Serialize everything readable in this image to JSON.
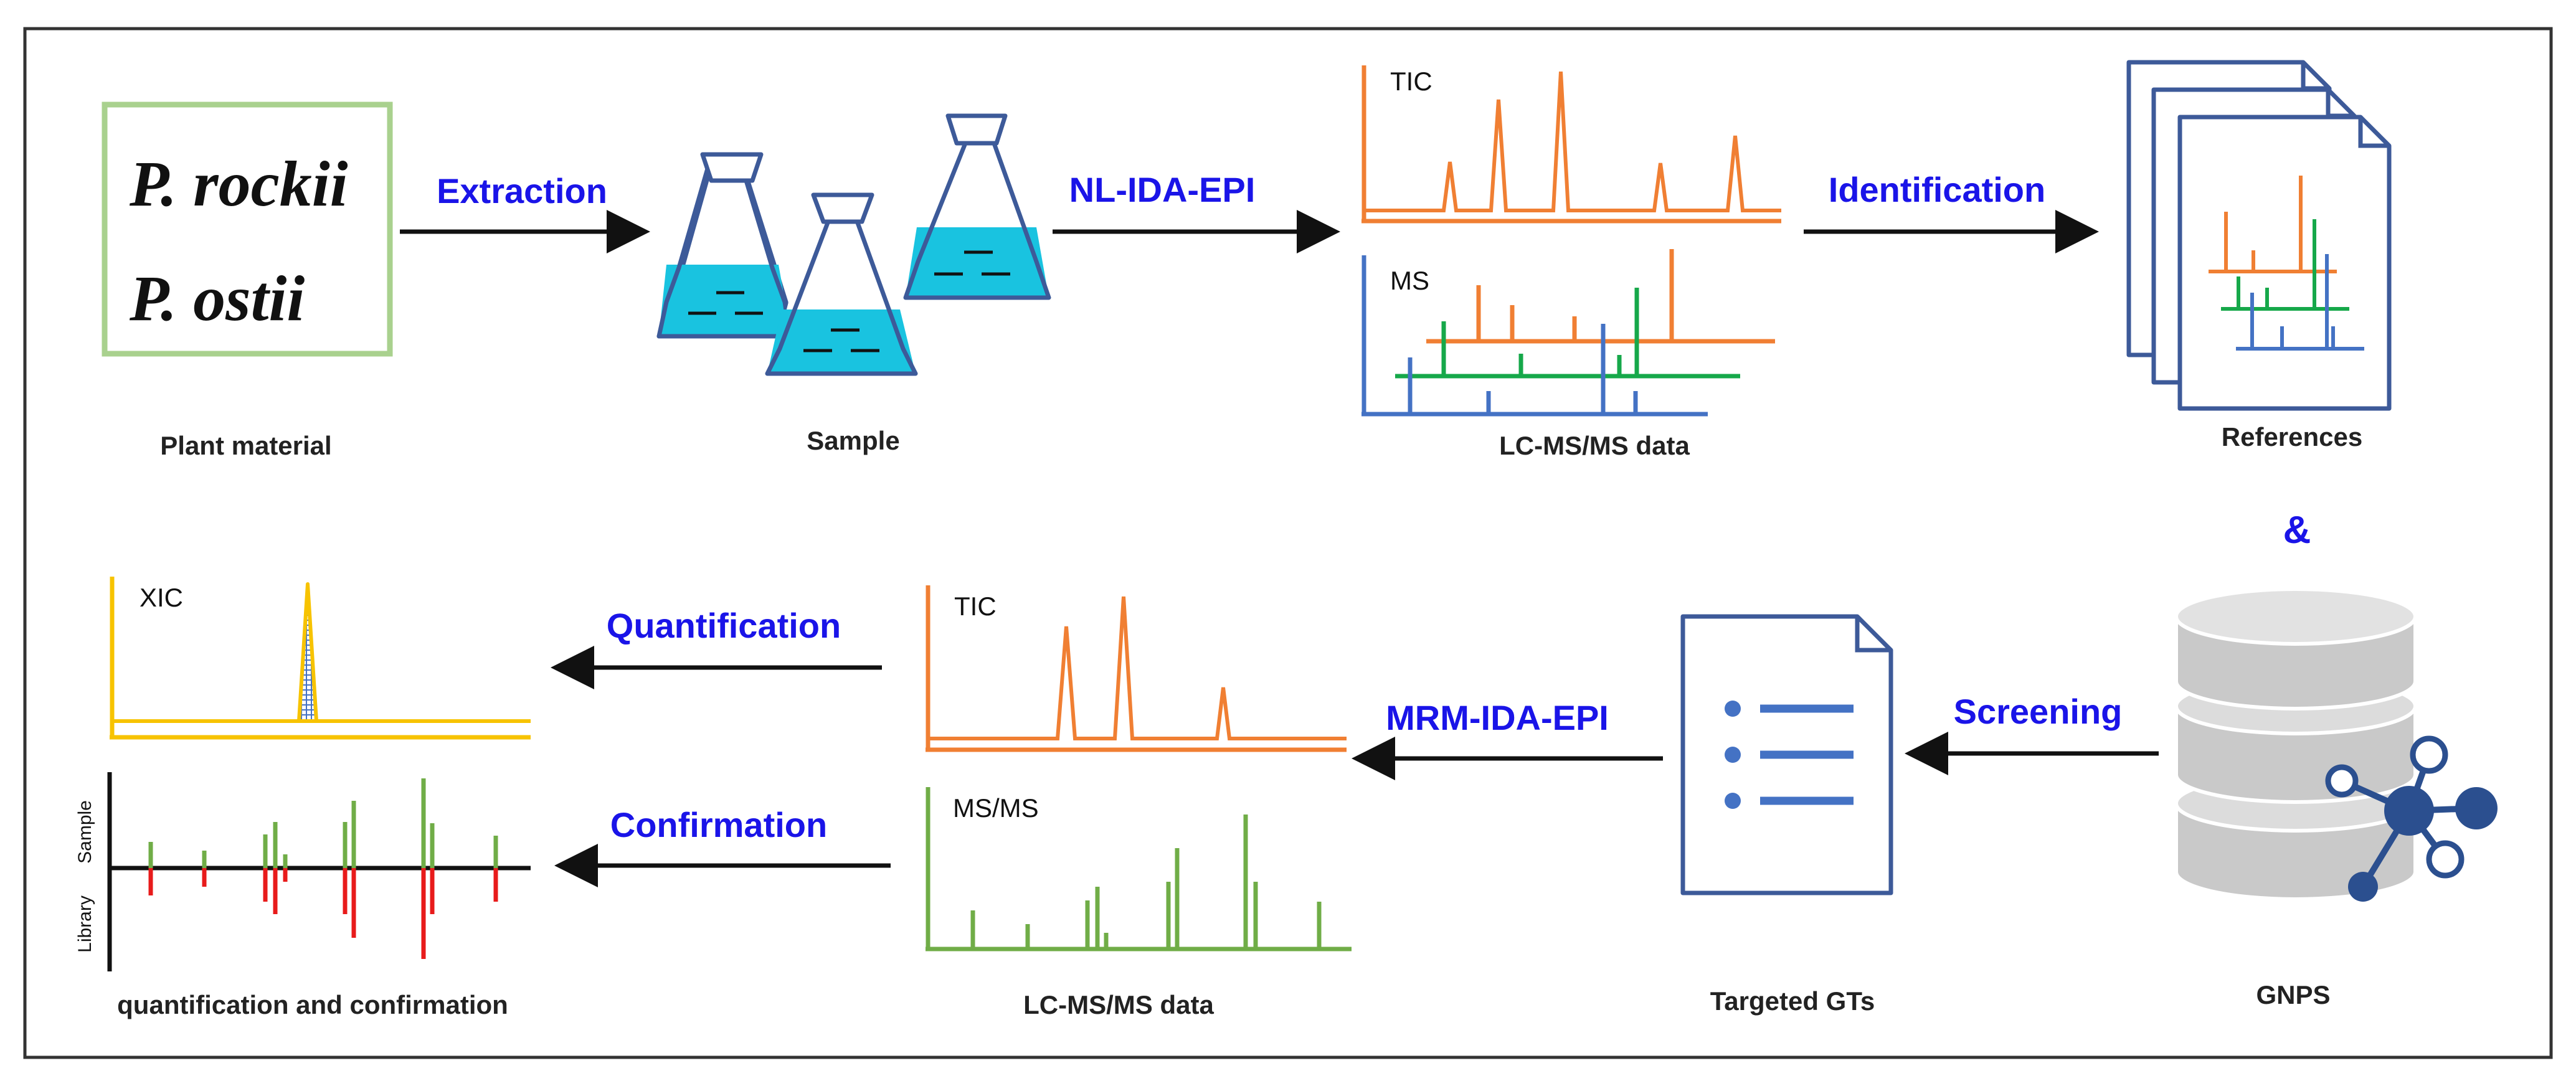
{
  "colors": {
    "frame": "#333333",
    "step": "#1a14e8",
    "orange": "#f07f33",
    "green": "#16a84a",
    "blue": "#4472c4",
    "lightgreen": "#70ad47",
    "red": "#e81b1b",
    "yellow": "#f7c300",
    "flask_liquid": "#19c3e0",
    "flask_outline": "#3d5a99",
    "plant_box": "#a9d18e",
    "db_gray": "#c9c9c9"
  },
  "plant": {
    "species1": "P. rockii",
    "species2": "P. ostii",
    "label": "Plant material"
  },
  "steps": {
    "extraction": "Extraction",
    "nl_ida_epi": "NL-IDA-EPI",
    "identification": "Identification",
    "screening": "Screening",
    "mrm_ida_epi": "MRM-IDA-EPI",
    "quantification": "Quantification",
    "confirmation": "Confirmation",
    "ampersand": "&"
  },
  "labels": {
    "sample": "Sample",
    "lcms_top": "LC-MS/MS data",
    "references": "References",
    "gnps": "GNPS",
    "targeted": "Targeted GTs",
    "lcms_bottom": "LC-MS/MS data",
    "quant_confirm": "quantification and confirmation"
  },
  "chart_labels": {
    "tic_top": "TIC",
    "ms_top": "MS",
    "tic_bottom": "TIC",
    "msms_bottom": "MS/MS",
    "xic": "XIC",
    "sample_axis": "Sample",
    "library_axis": "Library"
  }
}
